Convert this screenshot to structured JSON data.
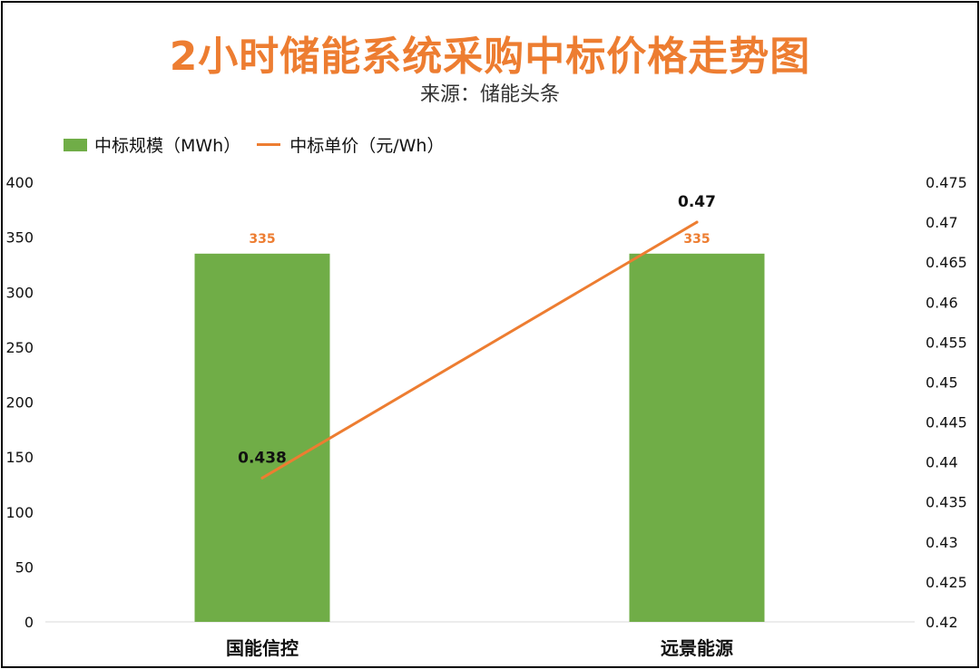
{
  "chart_data": {
    "type": "bar",
    "title": "2小时储能系统采购中标价格走势图",
    "subtitle": "来源：储能头条",
    "categories": [
      "国能信控",
      "远景能源"
    ],
    "series": [
      {
        "name": "中标规模（MWh）",
        "kind": "bar",
        "axis": "left",
        "color": "#70ad47",
        "label_color": "#ed7d31",
        "values": [
          335,
          335
        ],
        "labels": [
          "335",
          "335"
        ]
      },
      {
        "name": "中标单价（元/Wh）",
        "kind": "line",
        "axis": "right",
        "color": "#ed7d31",
        "values": [
          0.438,
          0.47
        ],
        "labels": [
          "0.438",
          "0.47"
        ]
      }
    ],
    "left_axis": {
      "ylim": [
        0,
        400
      ],
      "ticks": [
        "0",
        "50",
        "100",
        "150",
        "200",
        "250",
        "300",
        "350",
        "400"
      ]
    },
    "right_axis": {
      "ylim": [
        0.42,
        0.475
      ],
      "ticks": [
        "0.42",
        "0.425",
        "0.43",
        "0.435",
        "0.44",
        "0.445",
        "0.45",
        "0.455",
        "0.46",
        "0.465",
        "0.47",
        "0.475"
      ]
    },
    "grid": false,
    "legend_position": "top-left"
  }
}
